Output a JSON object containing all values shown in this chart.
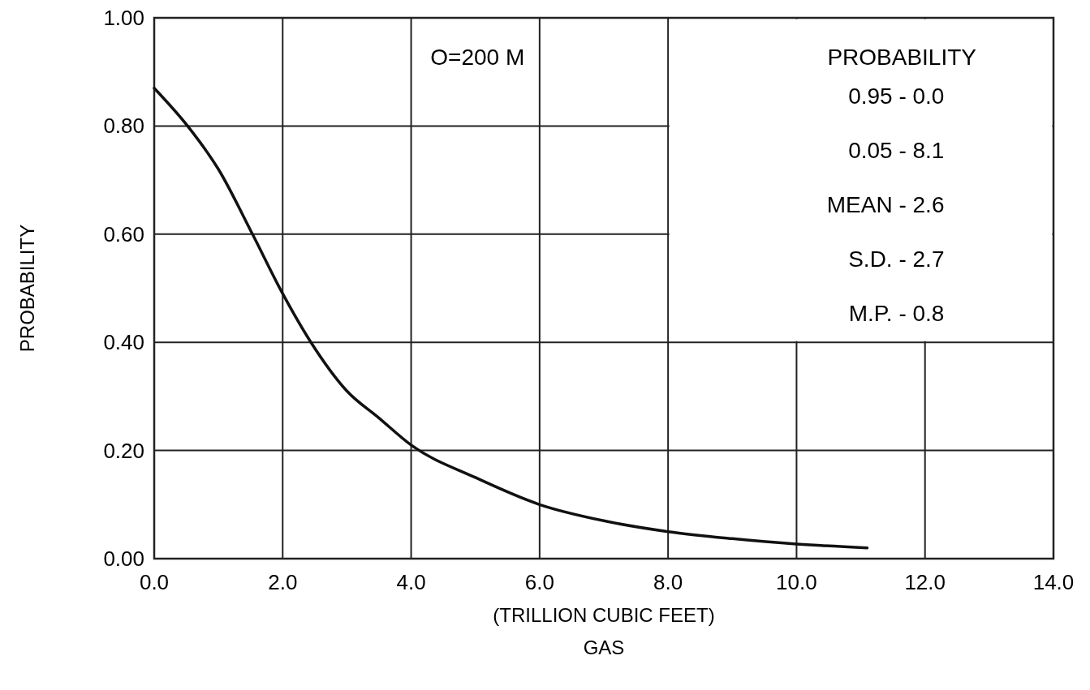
{
  "chart_data": {
    "type": "line",
    "xlabel": "GAS",
    "ylabel": "PROBABILITY",
    "x": [
      0,
      0.52,
      1.0,
      1.53,
      2.0,
      2.44,
      3.0,
      3.5,
      4.0,
      5.0,
      6.0,
      7.0,
      8.0,
      9.0,
      10.0,
      11.1
    ],
    "series": [
      {
        "color": "#111111",
        "values": [
          0.87,
          0.8,
          0.72,
          0.6,
          0.49,
          0.4,
          0.31,
          0.26,
          0.21,
          0.15,
          0.1,
          0.07,
          0.05,
          0.037,
          0.027,
          0.02
        ]
      }
    ],
    "xlim": [
      0,
      14
    ],
    "ylim": [
      0,
      1
    ],
    "xticks": [
      {
        "value": 0,
        "label": "0.0"
      },
      {
        "value": 2,
        "label": "2.0"
      },
      {
        "value": 4,
        "label": "4.0"
      },
      {
        "value": 6,
        "label": "6.0"
      },
      {
        "value": 8,
        "label": "8.0"
      },
      {
        "value": 10,
        "label": "10.0"
      },
      {
        "value": 12,
        "label": "12.0"
      },
      {
        "value": 14,
        "label": "14.0"
      }
    ],
    "yticks": [
      {
        "value": 0,
        "label": "0.00"
      },
      {
        "value": 0.2,
        "label": "0.20"
      },
      {
        "value": 0.4,
        "label": "0.40"
      },
      {
        "value": 0.6,
        "label": "0.60"
      },
      {
        "value": 0.8,
        "label": "0.80"
      },
      {
        "value": 1,
        "label": "1.00"
      }
    ],
    "grid": true,
    "marker": "none",
    "line_style": "solid",
    "annotations": [
      "(TRILLION CUBIC FEET)",
      "O=200 M",
      "PROBABILITY",
      "0.95 - 0.0",
      "0.05 - 8.1",
      "MEAN - 2.6",
      "S.D. - 2.7",
      "M.P. - 0.8"
    ]
  }
}
